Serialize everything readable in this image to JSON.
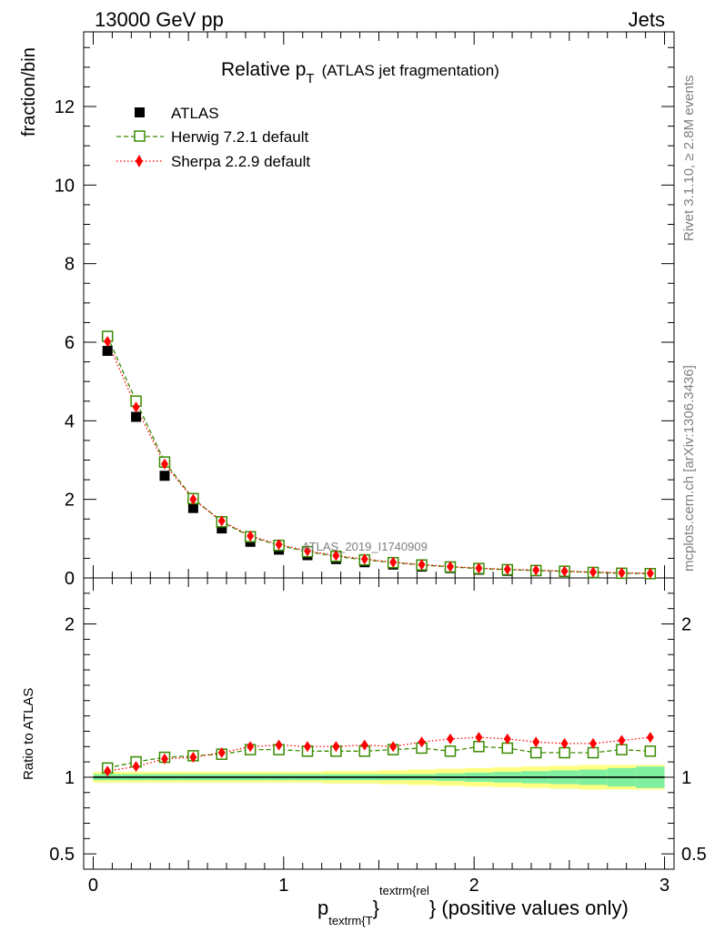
{
  "header": {
    "left": "13000 GeV pp",
    "right": "Jets"
  },
  "side_labels": {
    "top": "Rivet 3.1.10, ≥ 2.8M events",
    "bottom": "mcplots.cern.ch [arXiv:1306.3436]"
  },
  "watermark": "ATLAS_2019_I1740909",
  "title": {
    "main": "Relative p",
    "sub": "T",
    "extra": "(ATLAS jet fragmentation)"
  },
  "legend": [
    {
      "name": "ATLAS"
    },
    {
      "name": "Herwig 7.2.1 default"
    },
    {
      "name": "Sherpa 2.2.9 default"
    }
  ],
  "axes": {
    "ylabel_top": "fraction/bin",
    "ylabel_bottom": "Ratio to ATLAS",
    "xlabel": {
      "main": "p",
      "sub": "textrm{T",
      "sup_open": "}",
      "sup": "textrm{rel",
      "close": "}",
      "suffix": " (positive values only)"
    }
  },
  "colors": {
    "atlas": "#000000",
    "herwig": "#3a8a00",
    "sherpa": "#ff0000",
    "band_inner": "#80f0a0",
    "band_outer": "#ffff80"
  },
  "chart_data": [
    {
      "type": "scatter",
      "panel": "main",
      "xlim": [
        -0.05,
        3.05
      ],
      "ylim": [
        0,
        13.9
      ],
      "y_ticks": [
        0,
        2,
        4,
        6,
        8,
        10,
        12
      ],
      "x": [
        0.075,
        0.225,
        0.375,
        0.525,
        0.675,
        0.825,
        0.975,
        1.125,
        1.275,
        1.425,
        1.575,
        1.725,
        1.875,
        2.025,
        2.175,
        2.325,
        2.475,
        2.625,
        2.775,
        2.925
      ],
      "series": [
        {
          "name": "ATLAS",
          "marker": "filled-square",
          "values": [
            5.78,
            4.1,
            2.6,
            1.78,
            1.26,
            0.92,
            0.72,
            0.58,
            0.48,
            0.4,
            0.34,
            0.29,
            0.25,
            0.21,
            0.18,
            0.17,
            0.15,
            0.13,
            0.11,
            0.1
          ]
        },
        {
          "name": "Herwig 7.2.1 default",
          "marker": "open-square",
          "line": "dashed",
          "values": [
            6.15,
            4.5,
            2.95,
            2.02,
            1.43,
            1.05,
            0.83,
            0.67,
            0.55,
            0.46,
            0.39,
            0.33,
            0.28,
            0.24,
            0.21,
            0.19,
            0.17,
            0.14,
            0.12,
            0.11
          ]
        },
        {
          "name": "Sherpa 2.2.9 default",
          "marker": "filled-diamond",
          "line": "dotted",
          "values": [
            6.02,
            4.35,
            2.9,
            2.0,
            1.45,
            1.07,
            0.85,
            0.69,
            0.57,
            0.48,
            0.4,
            0.34,
            0.29,
            0.25,
            0.22,
            0.2,
            0.17,
            0.15,
            0.13,
            0.12
          ]
        }
      ]
    },
    {
      "type": "scatter",
      "panel": "ratio",
      "xlim": [
        -0.05,
        3.05
      ],
      "ylim": [
        0.4,
        2.3
      ],
      "y_ticks": [
        0.5,
        1,
        2
      ],
      "x_ticks": [
        0,
        1,
        2,
        3
      ],
      "x": [
        0.075,
        0.225,
        0.375,
        0.525,
        0.675,
        0.825,
        0.975,
        1.125,
        1.275,
        1.425,
        1.575,
        1.725,
        1.875,
        2.025,
        2.175,
        2.325,
        2.475,
        2.625,
        2.775,
        2.925
      ],
      "series": [
        {
          "name": "Herwig 7.2.1 default",
          "values": [
            1.06,
            1.1,
            1.13,
            1.14,
            1.15,
            1.18,
            1.18,
            1.17,
            1.17,
            1.17,
            1.18,
            1.19,
            1.17,
            1.2,
            1.19,
            1.16,
            1.16,
            1.16,
            1.18,
            1.17
          ]
        },
        {
          "name": "Sherpa 2.2.9 default",
          "values": [
            1.04,
            1.07,
            1.12,
            1.13,
            1.16,
            1.2,
            1.21,
            1.2,
            1.2,
            1.21,
            1.2,
            1.23,
            1.25,
            1.26,
            1.25,
            1.23,
            1.22,
            1.22,
            1.24,
            1.26
          ]
        }
      ],
      "band_inner_halfwidth": [
        0.02,
        0.02,
        0.02,
        0.02,
        0.02,
        0.02,
        0.02,
        0.02,
        0.02,
        0.02,
        0.02,
        0.02,
        0.025,
        0.03,
        0.035,
        0.04,
        0.045,
        0.05,
        0.06,
        0.07
      ],
      "band_outer_halfwidth": [
        0.035,
        0.035,
        0.035,
        0.035,
        0.035,
        0.035,
        0.035,
        0.035,
        0.04,
        0.04,
        0.045,
        0.05,
        0.055,
        0.06,
        0.065,
        0.07,
        0.075,
        0.08,
        0.08,
        0.08
      ]
    }
  ]
}
